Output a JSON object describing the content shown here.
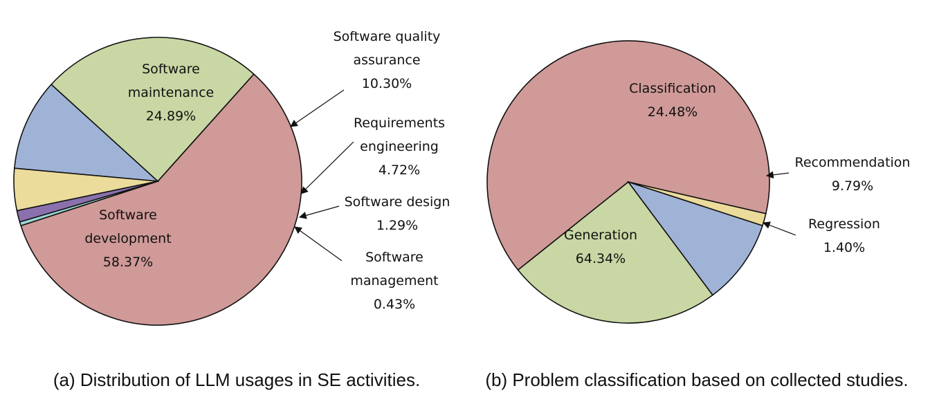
{
  "chart_data": [
    {
      "type": "pie",
      "caption": "(a) Distribution of LLM usages in SE activities.",
      "slices": [
        {
          "label": "Software development",
          "value": 58.37,
          "display": "58.37%",
          "color": "#d09a98"
        },
        {
          "label": "Software maintenance",
          "value": 24.89,
          "display": "24.89%",
          "color": "#c9d7a4"
        },
        {
          "label": "Software quality assurance",
          "value": 10.3,
          "display": "10.30%",
          "color": "#9fb3d6"
        },
        {
          "label": "Requirements engineering",
          "value": 4.72,
          "display": "4.72%",
          "color": "#ebdc9c"
        },
        {
          "label": "Software design",
          "value": 1.29,
          "display": "1.29%",
          "color": "#8a71ad"
        },
        {
          "label": "Software management",
          "value": 0.43,
          "display": "0.43%",
          "color": "#9dd6d4"
        }
      ]
    },
    {
      "type": "pie",
      "caption": "(b) Problem classification based on collected studies.",
      "slices": [
        {
          "label": "Generation",
          "value": 64.34,
          "display": "64.34%",
          "color": "#d09a98"
        },
        {
          "label": "Classification",
          "value": 24.48,
          "display": "24.48%",
          "color": "#c9d7a4"
        },
        {
          "label": "Recommendation",
          "value": 9.79,
          "display": "9.79%",
          "color": "#9fb3d6"
        },
        {
          "label": "Regression",
          "value": 1.4,
          "display": "1.40%",
          "color": "#ebdc9c"
        }
      ]
    }
  ]
}
